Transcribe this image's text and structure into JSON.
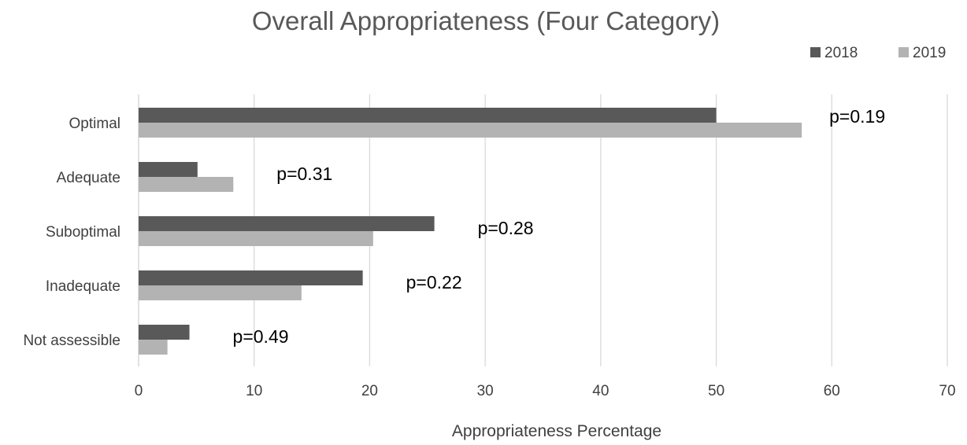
{
  "chart_data": {
    "type": "bar",
    "orientation": "horizontal",
    "title": "Overall Appropriateness (Four Category)",
    "xlabel": "Appropriateness Percentage",
    "ylabel": "",
    "categories": [
      "Optimal",
      "Adequate",
      "Suboptimal",
      "Inadequate",
      "Not assessible"
    ],
    "series": [
      {
        "name": "2018",
        "values": [
          50,
          5.1,
          25.6,
          19.4,
          4.4
        ],
        "color": "#595959"
      },
      {
        "name": "2019",
        "values": [
          57.4,
          8.2,
          20.3,
          14.1,
          2.5
        ],
        "color": "#b3b3b3"
      }
    ],
    "annotations": [
      "p=0.19",
      "p=0.31",
      "p=0.28",
      "p=0.22",
      "p=0.49"
    ],
    "xlim": [
      0,
      70
    ],
    "xticks": [
      "0",
      "10",
      "20",
      "30",
      "40",
      "50",
      "60",
      "70"
    ],
    "grid": true,
    "legend_position": "top-right",
    "colors": {
      "title": "#595959",
      "axis_text": "#404040",
      "grid": "#d9d9d9",
      "annotation": "#000000"
    }
  }
}
